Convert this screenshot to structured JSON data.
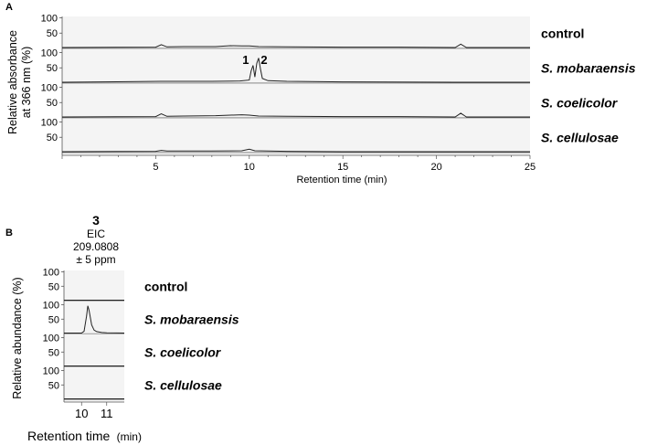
{
  "panel_a_letter": "A",
  "panel_b_letter": "B",
  "chart_data": [
    {
      "type": "line",
      "panel": "A",
      "xlabel": "Retention time (min)",
      "ylabel": "Relative absorbance at 366 nm (%)",
      "ylabel_lines": [
        "Relative absorbance",
        "at 366 nm (%)"
      ],
      "xlim": [
        0,
        25
      ],
      "xticks": [
        "5",
        "10",
        "15",
        "20",
        "25"
      ],
      "yticks": [
        "50",
        "100"
      ],
      "ylim": [
        0,
        100
      ],
      "series": [
        {
          "name": "control",
          "x": [
            0,
            5.0,
            5.3,
            5.6,
            6.5,
            8.2,
            9.0,
            9.6,
            10.0,
            10.5,
            12.0,
            15.0,
            18.0,
            21.0,
            21.3,
            21.6,
            25
          ],
          "y": [
            3,
            4,
            12,
            5,
            6,
            6,
            9,
            8,
            8,
            6,
            5,
            4,
            4,
            3,
            14,
            3,
            3
          ]
        },
        {
          "name": "S. mobaraensis",
          "x": [
            0,
            5.3,
            8.0,
            9.5,
            10.0,
            10.1,
            10.2,
            10.3,
            10.4,
            10.5,
            10.6,
            10.7,
            11.0,
            12.0,
            15.0,
            21.0,
            25
          ],
          "y": [
            3,
            6,
            6,
            7,
            10,
            40,
            58,
            20,
            65,
            82,
            45,
            15,
            8,
            6,
            4,
            3,
            3
          ]
        },
        {
          "name": "S. coelicolor",
          "x": [
            0,
            5.0,
            5.3,
            5.6,
            6.5,
            8.2,
            9.0,
            9.6,
            10.0,
            10.5,
            12.0,
            15.0,
            18.0,
            21.0,
            21.3,
            21.6,
            25
          ],
          "y": [
            3,
            4,
            13,
            5,
            6,
            7,
            9,
            10,
            9,
            6,
            5,
            4,
            4,
            3,
            15,
            3,
            3
          ]
        },
        {
          "name": "S. cellulosae",
          "x": [
            0,
            5.0,
            5.3,
            5.6,
            8.0,
            9.6,
            10.0,
            10.3,
            12.0,
            15.0,
            25
          ],
          "y": [
            3,
            4,
            7,
            5,
            5,
            6,
            11,
            6,
            4,
            3,
            3
          ]
        }
      ],
      "peak_labels": [
        {
          "text": "1",
          "x": 10.2
        },
        {
          "text": "2",
          "x": 10.5
        }
      ]
    },
    {
      "type": "line",
      "panel": "B",
      "header": [
        "3",
        "EIC",
        "209.0808",
        "± 5 ppm"
      ],
      "xlabel": "Retention time (min)",
      "xlabel_parts": [
        "Retention time",
        "(min)"
      ],
      "ylabel": "Relative abundance (%)",
      "xlim": [
        9.3,
        11.7
      ],
      "xticks": [
        "10",
        "11"
      ],
      "yticks": [
        "50",
        "100"
      ],
      "ylim": [
        0,
        100
      ],
      "series": [
        {
          "name": "control",
          "x": [
            9.3,
            11.7
          ],
          "y": [
            2,
            2
          ]
        },
        {
          "name": "S. mobaraensis",
          "x": [
            9.3,
            10.0,
            10.1,
            10.2,
            10.25,
            10.3,
            10.4,
            10.5,
            10.6,
            10.8,
            11.0,
            11.7
          ],
          "y": [
            2,
            2,
            8,
            60,
            96,
            80,
            30,
            12,
            7,
            4,
            3,
            2
          ]
        },
        {
          "name": "S. coelicolor",
          "x": [
            9.3,
            11.7
          ],
          "y": [
            2,
            2
          ]
        },
        {
          "name": "S. cellulosae",
          "x": [
            9.3,
            11.7
          ],
          "y": [
            2,
            2
          ]
        }
      ]
    }
  ]
}
